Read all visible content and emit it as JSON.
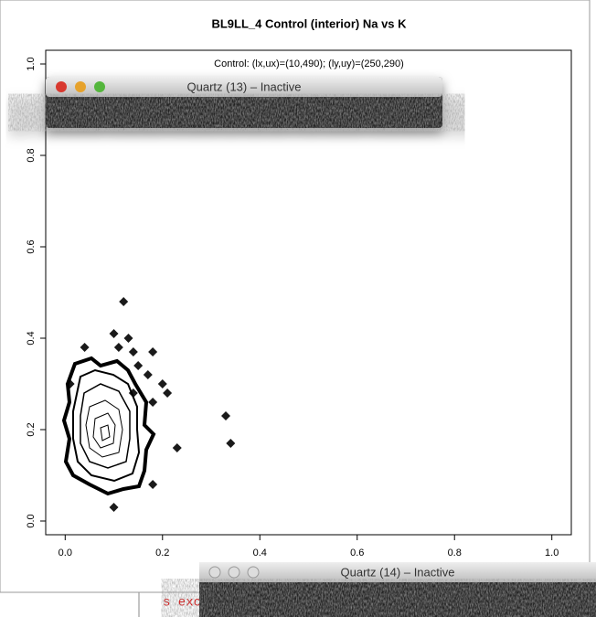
{
  "chart_data": {
    "type": "scatter",
    "title": "BL9LL_4 Control (interior) Na vs K",
    "subtitle": "Control: (lx,ux)=(10,490); (ly,uy)=(250,290)",
    "x": [
      0.12,
      0.1,
      0.13,
      0.04,
      0.11,
      0.14,
      0.18,
      0.15,
      0.17,
      0.2,
      0.21,
      0.33,
      0.34,
      0.23,
      0.18,
      0.1,
      0.01,
      0.18,
      0.14
    ],
    "y": [
      0.48,
      0.41,
      0.4,
      0.38,
      0.38,
      0.37,
      0.37,
      0.34,
      0.32,
      0.3,
      0.28,
      0.23,
      0.17,
      0.16,
      0.08,
      0.03,
      0.3,
      0.26,
      0.28
    ],
    "color": "#1a1a1a",
    "xlim": [
      -0.04,
      1.04
    ],
    "ylim": [
      -0.03,
      1.03
    ],
    "xticks": [
      {
        "value": 0,
        "label": "0.0"
      },
      0.2,
      0.4,
      0.6,
      0.8,
      {
        "value": 1,
        "label": "1.0"
      }
    ],
    "yticks": [
      {
        "value": 0,
        "label": "0.0"
      },
      0.2,
      0.4,
      0.6,
      0.8,
      {
        "value": 1,
        "label": "1.0"
      }
    ]
  },
  "windows": [
    {
      "title": "Quartz (13) – Inactive"
    },
    {
      "title": "Quartz (14) – Inactive"
    }
  ],
  "background_text": "s exc"
}
